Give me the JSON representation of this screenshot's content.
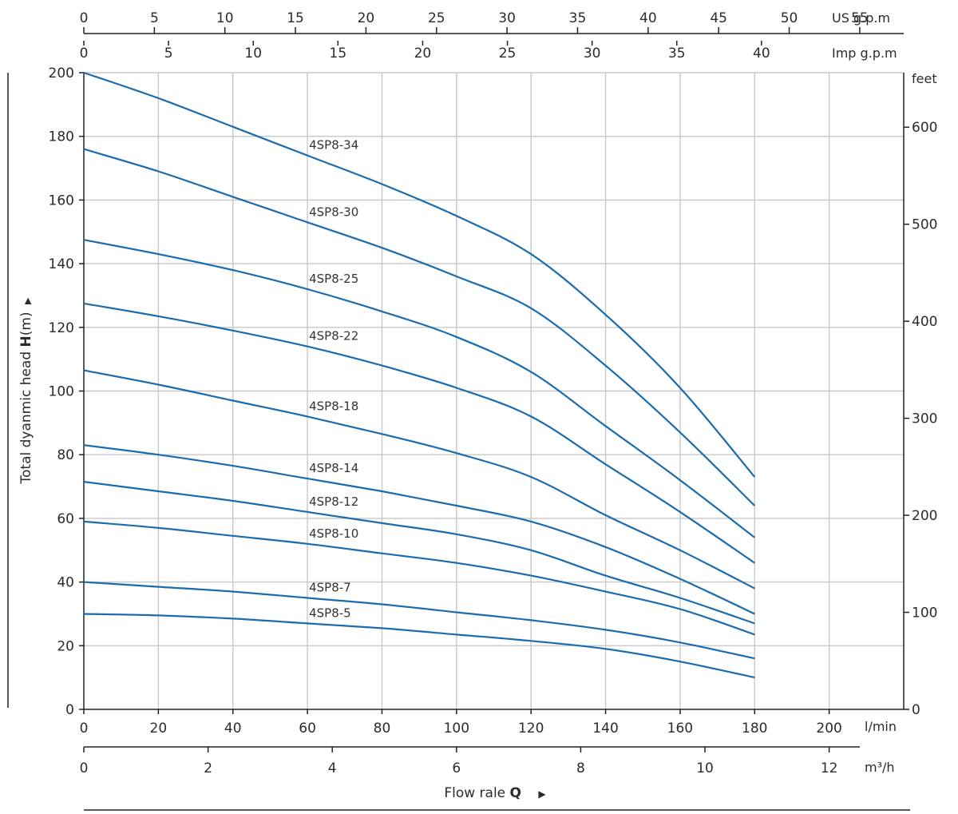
{
  "chart_data": {
    "type": "line",
    "title": "",
    "x": [
      0,
      20,
      40,
      60,
      80,
      100,
      120,
      140,
      160,
      180
    ],
    "series": [
      {
        "name": "4SP8-34",
        "values": [
          200,
          192,
          183,
          174,
          165,
          155,
          143,
          124,
          101,
          73
        ]
      },
      {
        "name": "4SP8-30",
        "values": [
          176,
          169,
          161,
          153,
          145,
          136,
          126,
          108,
          87,
          64
        ]
      },
      {
        "name": "4SP8-25",
        "values": [
          147.5,
          143,
          138,
          132,
          125,
          117,
          106,
          89,
          72,
          54
        ]
      },
      {
        "name": "4SP8-22",
        "values": [
          127.5,
          123.5,
          119,
          114,
          108,
          101,
          92,
          77,
          62,
          46
        ]
      },
      {
        "name": "4SP8-18",
        "values": [
          106.5,
          102,
          97,
          92,
          86.5,
          80.5,
          73,
          61,
          50,
          38
        ]
      },
      {
        "name": "4SP8-14",
        "values": [
          83,
          80,
          76.5,
          72.5,
          68.5,
          64,
          59,
          51,
          41,
          30
        ]
      },
      {
        "name": "4SP8-12",
        "values": [
          71.5,
          68.5,
          65.5,
          62,
          58.5,
          55,
          50,
          42,
          35,
          27
        ]
      },
      {
        "name": "4SP8-10",
        "values": [
          59,
          57,
          54.5,
          52,
          49,
          46,
          42,
          37,
          31.5,
          23.5
        ]
      },
      {
        "name": "4SP8-7",
        "values": [
          40,
          38.5,
          37,
          35,
          33,
          30.5,
          28,
          25,
          21,
          16
        ]
      },
      {
        "name": "4SP8-5",
        "values": [
          30,
          29.5,
          28.5,
          27,
          25.5,
          23.5,
          21.5,
          19,
          15,
          10
        ]
      }
    ],
    "xlim": [
      0,
      220
    ],
    "ylim": [
      0,
      200
    ],
    "grid": true,
    "y_ticks": [
      0,
      20,
      40,
      60,
      80,
      100,
      120,
      140,
      160,
      180,
      200
    ],
    "ylabel_prefix": "Total dyanmic head ",
    "ylabel_bold": "H",
    "ylabel_suffix": "(m)",
    "arrow_glyph": "▶",
    "axes": {
      "lmin": {
        "unit": "l/min",
        "ticks": [
          0,
          20,
          40,
          60,
          80,
          100,
          120,
          140,
          160,
          180,
          200
        ]
      },
      "m3h": {
        "unit": "m³/h",
        "ticks": [
          0,
          2,
          4,
          6,
          8,
          10,
          12
        ]
      },
      "usgpm": {
        "unit": "US g.p.m",
        "ticks": [
          0,
          5,
          10,
          15,
          20,
          25,
          30,
          35,
          40,
          45,
          50,
          55
        ]
      },
      "impgpm": {
        "unit": "Imp g.p.m",
        "ticks": [
          0,
          5,
          10,
          15,
          20,
          25,
          30,
          35,
          40
        ]
      },
      "feet": {
        "unit": "feet",
        "ticks": [
          0,
          100,
          200,
          300,
          400,
          500,
          600
        ]
      }
    },
    "xlabel_prefix": "Flow rale ",
    "xlabel_bold": "Q"
  }
}
